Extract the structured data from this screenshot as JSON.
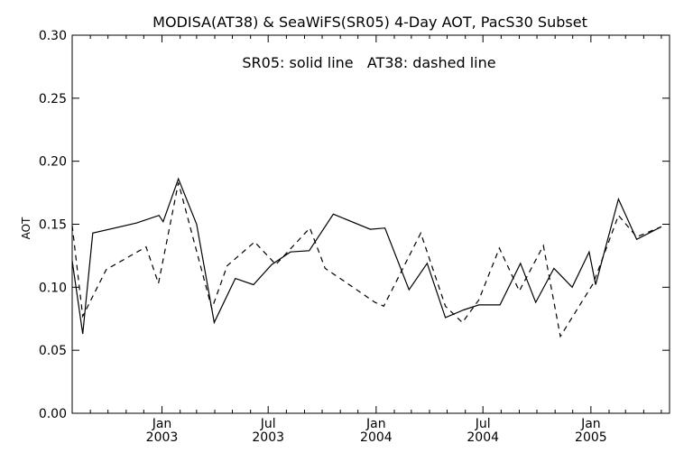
{
  "chart_data": {
    "type": "line",
    "title": "MODISA(AT38) & SeaWiFS(SR05) 4-Day AOT, PacS30 Subset",
    "annotation": "SR05: solid line   AT38: dashed line",
    "ylabel": "AOT",
    "xlabel": "",
    "ylim": [
      0.0,
      0.3
    ],
    "xlim": [
      "2002-08-01",
      "2005-05-15"
    ],
    "grid": false,
    "y_ticks": [
      "0.00",
      "0.05",
      "0.10",
      "0.15",
      "0.20",
      "0.25",
      "0.30"
    ],
    "x_ticks": [
      {
        "date": "2003-01-01",
        "month": "Jan",
        "year": "2003"
      },
      {
        "date": "2003-07-01",
        "month": "Jul",
        "year": "2003"
      },
      {
        "date": "2004-01-01",
        "month": "Jan",
        "year": "2004"
      },
      {
        "date": "2004-07-01",
        "month": "Jul",
        "year": "2004"
      },
      {
        "date": "2005-01-01",
        "month": "Jan",
        "year": "2005"
      }
    ],
    "series": [
      {
        "name": "SR05",
        "style": "solid",
        "color": "#000000",
        "points": [
          [
            "2002-08-01",
            0.121
          ],
          [
            "2002-08-19",
            0.063
          ],
          [
            "2002-09-05",
            0.143
          ],
          [
            "2002-11-19",
            0.151
          ],
          [
            "2002-12-27",
            0.157
          ],
          [
            "2003-01-03",
            0.152
          ],
          [
            "2003-01-29",
            0.186
          ],
          [
            "2003-02-29",
            0.15
          ],
          [
            "2003-03-31",
            0.072
          ],
          [
            "2003-05-06",
            0.107
          ],
          [
            "2003-06-06",
            0.102
          ],
          [
            "2003-07-07",
            0.118
          ],
          [
            "2003-08-08",
            0.128
          ],
          [
            "2003-09-09",
            0.129
          ],
          [
            "2003-10-20",
            0.158
          ],
          [
            "2003-12-22",
            0.146
          ],
          [
            "2004-01-16",
            0.147
          ],
          [
            "2004-02-26",
            0.098
          ],
          [
            "2004-03-28",
            0.119
          ],
          [
            "2004-04-28",
            0.076
          ],
          [
            "2004-05-29",
            0.082
          ],
          [
            "2004-06-24",
            0.086
          ],
          [
            "2004-07-30",
            0.086
          ],
          [
            "2004-09-03",
            0.119
          ],
          [
            "2004-09-29",
            0.088
          ],
          [
            "2004-10-30",
            0.115
          ],
          [
            "2004-11-30",
            0.1
          ],
          [
            "2004-12-29",
            0.128
          ],
          [
            "2005-01-09",
            0.102
          ],
          [
            "2005-02-17",
            0.17
          ],
          [
            "2005-03-20",
            0.138
          ],
          [
            "2005-05-01",
            0.148
          ]
        ]
      },
      {
        "name": "AT38",
        "style": "dashed",
        "color": "#000000",
        "points": [
          [
            "2002-08-01",
            0.149
          ],
          [
            "2002-08-19",
            0.077
          ],
          [
            "2002-09-28",
            0.114
          ],
          [
            "2002-12-05",
            0.132
          ],
          [
            "2002-12-26",
            0.103
          ],
          [
            "2003-01-29",
            0.183
          ],
          [
            "2003-03-27",
            0.083
          ],
          [
            "2003-04-22",
            0.117
          ],
          [
            "2003-06-08",
            0.136
          ],
          [
            "2003-07-14",
            0.118
          ],
          [
            "2003-09-10",
            0.147
          ],
          [
            "2003-10-06",
            0.115
          ],
          [
            "2003-11-10",
            0.104
          ],
          [
            "2003-12-30",
            0.088
          ],
          [
            "2004-01-14",
            0.085
          ],
          [
            "2004-03-17",
            0.143
          ],
          [
            "2004-04-28",
            0.085
          ],
          [
            "2004-05-27",
            0.072
          ],
          [
            "2004-06-24",
            0.09
          ],
          [
            "2004-07-29",
            0.131
          ],
          [
            "2004-09-01",
            0.097
          ],
          [
            "2004-10-12",
            0.133
          ],
          [
            "2004-11-10",
            0.061
          ],
          [
            "2005-01-05",
            0.103
          ],
          [
            "2005-02-17",
            0.157
          ],
          [
            "2005-03-20",
            0.14
          ],
          [
            "2005-05-01",
            0.148
          ]
        ]
      }
    ]
  }
}
